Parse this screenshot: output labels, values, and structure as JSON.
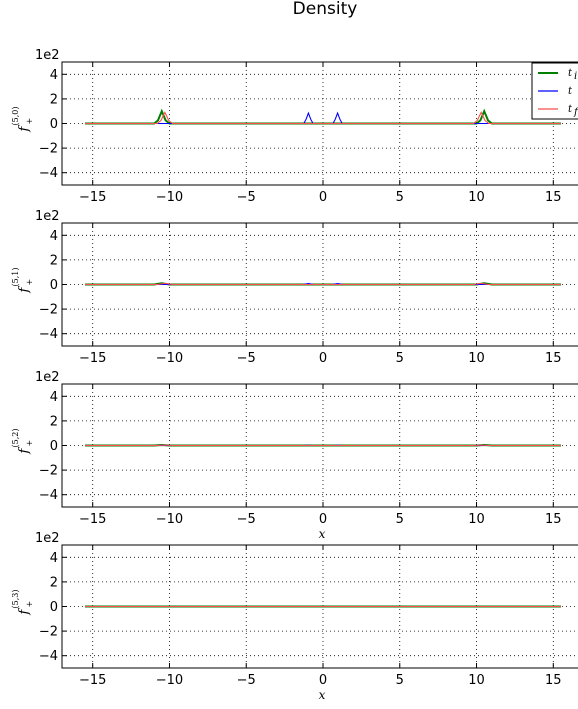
{
  "figure": {
    "title": "Density"
  },
  "colors": {
    "t_i": "#008000",
    "t": "#0000ff",
    "t_f": "#ff4d4d"
  },
  "legend": {
    "entries": [
      {
        "series": "t_i",
        "label": "t",
        "sub": "i",
        "color": "#008000"
      },
      {
        "series": "t",
        "label": "t",
        "sub": "",
        "color": "#0000ff"
      },
      {
        "series": "t_f",
        "label": "t",
        "sub": "f",
        "color": "#ff4d4d"
      }
    ]
  },
  "chart_data": [
    {
      "type": "line",
      "ylabel": "f",
      "ylabel_sup": "(5,0)",
      "ylabel_sub": "+",
      "xlabel": "",
      "scale_label": "1e2",
      "xlim": [
        -17,
        17
      ],
      "ylim": [
        -5,
        5
      ],
      "xticks": [
        -15,
        -10,
        -5,
        0,
        5,
        10,
        15
      ],
      "yticks": [
        -4,
        -2,
        0,
        2,
        4
      ],
      "grid": true,
      "legend_position": "top-right",
      "series": [
        {
          "name": "t_i",
          "x": [
            -15.5,
            -11.0,
            -10.75,
            -10.5,
            -10.25,
            -10.0,
            10.0,
            10.25,
            10.5,
            10.75,
            11.0,
            15.5
          ],
          "y": [
            0,
            0,
            0.25,
            1.0,
            0.25,
            0,
            0,
            0.25,
            1.0,
            0.25,
            0,
            0
          ]
        },
        {
          "name": "t",
          "x": [
            -15.5,
            -1.25,
            -1.1,
            -0.95,
            -0.8,
            -0.65,
            0.65,
            0.8,
            0.95,
            1.1,
            1.25,
            15.5
          ],
          "y": [
            0,
            0,
            0.35,
            0.85,
            0.35,
            0,
            0,
            0.35,
            0.85,
            0.35,
            0,
            0
          ]
        },
        {
          "name": "t_f",
          "x": [
            -15.5,
            -10.8,
            -10.55,
            -10.3,
            -10.05,
            -9.8,
            9.8,
            10.05,
            10.3,
            10.55,
            10.8,
            15.5
          ],
          "y": [
            0,
            0,
            0.25,
            0.9,
            0.25,
            0,
            0,
            0.25,
            0.9,
            0.25,
            0,
            0
          ]
        }
      ]
    },
    {
      "type": "line",
      "ylabel": "f",
      "ylabel_sup": "(5,1)",
      "ylabel_sub": "+",
      "xlabel": "",
      "scale_label": "1e2",
      "xlim": [
        -17,
        17
      ],
      "ylim": [
        -5,
        5
      ],
      "xticks": [
        -15,
        -10,
        -5,
        0,
        5,
        10,
        15
      ],
      "yticks": [
        -4,
        -2,
        0,
        2,
        4
      ],
      "grid": true,
      "series": [
        {
          "name": "t_i",
          "x": [
            -15.5,
            -11.0,
            -10.5,
            -10.0,
            10.0,
            10.5,
            11.0,
            15.5
          ],
          "y": [
            0,
            0,
            0.1,
            0,
            0,
            0.1,
            0,
            0
          ]
        },
        {
          "name": "t",
          "x": [
            -15.5,
            -1.3,
            -0.95,
            -0.6,
            0.6,
            0.95,
            1.3,
            15.5
          ],
          "y": [
            0,
            0,
            0.08,
            0,
            0,
            0.08,
            0,
            0
          ]
        },
        {
          "name": "t_f",
          "x": [
            -15.5,
            -10.8,
            -10.3,
            -9.8,
            9.8,
            10.3,
            10.8,
            15.5
          ],
          "y": [
            0,
            0,
            0.09,
            0,
            0,
            0.09,
            0,
            0
          ]
        }
      ]
    },
    {
      "type": "line",
      "ylabel": "f",
      "ylabel_sup": "(5,2)",
      "ylabel_sub": "+",
      "xlabel": "x",
      "scale_label": "1e2",
      "xlim": [
        -17,
        17
      ],
      "ylim": [
        -5,
        5
      ],
      "xticks": [
        -15,
        -10,
        -5,
        0,
        5,
        10,
        15
      ],
      "yticks": [
        -4,
        -2,
        0,
        2,
        4
      ],
      "grid": true,
      "series": [
        {
          "name": "t_i",
          "x": [
            -15.5,
            -11.0,
            -10.5,
            -10.0,
            10.0,
            10.5,
            11.0,
            15.5
          ],
          "y": [
            0,
            0,
            0.04,
            0,
            0,
            0.04,
            0,
            0
          ]
        },
        {
          "name": "t",
          "x": [
            -15.5,
            -1.3,
            -0.95,
            -0.6,
            0.6,
            0.95,
            1.3,
            15.5
          ],
          "y": [
            0,
            0,
            0.02,
            0,
            0,
            0.02,
            0,
            0
          ]
        },
        {
          "name": "t_f",
          "x": [
            -15.5,
            -10.8,
            -10.3,
            -9.8,
            9.8,
            10.3,
            10.8,
            15.5
          ],
          "y": [
            0,
            0,
            0.03,
            0,
            0,
            0.03,
            0,
            0
          ]
        }
      ]
    },
    {
      "type": "line",
      "ylabel": "f",
      "ylabel_sup": "(5,3)",
      "ylabel_sub": "+",
      "xlabel": "x",
      "scale_label": "1e2",
      "xlim": [
        -17,
        17
      ],
      "ylim": [
        -5,
        5
      ],
      "xticks": [
        -15,
        -10,
        -5,
        0,
        5,
        10,
        15
      ],
      "yticks": [
        -4,
        -2,
        0,
        2,
        4
      ],
      "grid": true,
      "series": [
        {
          "name": "t_i",
          "x": [
            -15.5,
            15.5
          ],
          "y": [
            0,
            0
          ]
        },
        {
          "name": "t",
          "x": [
            -15.5,
            15.5
          ],
          "y": [
            0,
            0
          ]
        },
        {
          "name": "t_f",
          "x": [
            -15.5,
            15.5
          ],
          "y": [
            0,
            0
          ]
        }
      ]
    }
  ]
}
